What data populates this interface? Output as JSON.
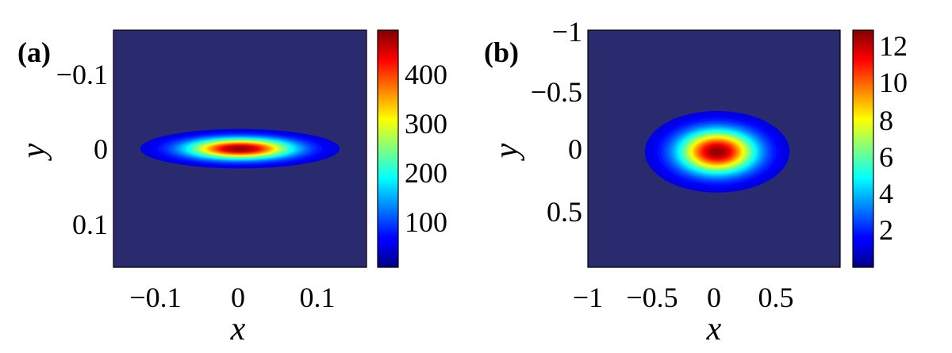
{
  "chart_data": [
    {
      "type": "heatmap",
      "panel_label": "(a)",
      "xlabel": "x",
      "ylabel": "y",
      "xlim": [
        -0.16,
        0.16
      ],
      "ylim": [
        -0.16,
        0.16
      ],
      "y_axis_reversed": true,
      "x_ticks": [
        -0.1,
        0,
        0.1
      ],
      "x_tick_labels": [
        "−0.1",
        "0",
        "0.1"
      ],
      "y_ticks": [
        -0.1,
        0,
        0.1
      ],
      "y_tick_labels": [
        "−0.1",
        "0",
        "0.1"
      ],
      "peak": {
        "x": 0,
        "y": 0,
        "value": 480
      },
      "spread": {
        "sigma_x": 0.045,
        "sigma_y": 0.0095
      },
      "colorbar": {
        "min": 0,
        "max": 480,
        "ticks": [
          100,
          200,
          300,
          400
        ],
        "tick_labels": [
          "100",
          "200",
          "300",
          "400"
        ],
        "colormap": "jet"
      }
    },
    {
      "type": "heatmap",
      "panel_label": "(b)",
      "xlabel": "x",
      "ylabel": "y",
      "xlim": [
        -1,
        0.95
      ],
      "ylim": [
        -1,
        0.95
      ],
      "y_axis_reversed": true,
      "x_ticks": [
        -1,
        -0.5,
        0,
        0.5
      ],
      "x_tick_labels": [
        "−1",
        "−0.5",
        "0",
        "0.5"
      ],
      "y_ticks": [
        -1,
        -0.5,
        0,
        0.5
      ],
      "y_tick_labels": [
        "−1",
        "−0.5",
        "0",
        "0.5"
      ],
      "peak": {
        "x": 0,
        "y": 0,
        "value": 12.5
      },
      "spread": {
        "sigma_x": 0.2,
        "sigma_y": 0.12
      },
      "colorbar": {
        "min": 0,
        "max": 12.5,
        "ticks": [
          2,
          4,
          6,
          8,
          10,
          12
        ],
        "tick_labels": [
          "2",
          "4",
          "6",
          "8",
          "10",
          "12"
        ],
        "colormap": "jet"
      }
    }
  ]
}
